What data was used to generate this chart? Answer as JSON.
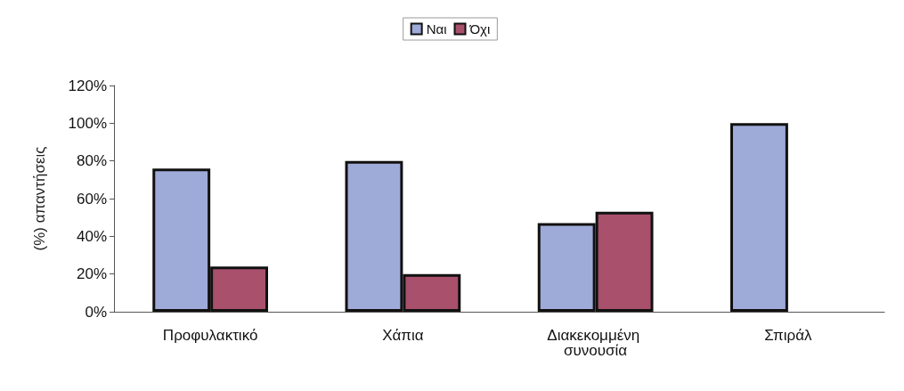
{
  "chart_data": {
    "type": "bar",
    "ylabel": "(%) απαντήσεις",
    "categories": [
      "Προφυλακτικό",
      "Χάπια",
      "Διακεκομμένη συνουσία",
      "Σπιράλ"
    ],
    "series": [
      {
        "name": "Ναι",
        "color": "#9eaad8",
        "values": [
          76,
          80,
          47,
          100
        ]
      },
      {
        "name": "Όχι",
        "color": "#a8506c",
        "values": [
          24,
          20,
          53,
          0
        ]
      }
    ],
    "ylim": [
      0,
      120
    ],
    "yticks": [
      {
        "value": 0,
        "label": "0%"
      },
      {
        "value": 20,
        "label": "20%"
      },
      {
        "value": 40,
        "label": "40%"
      },
      {
        "value": 60,
        "label": "60%"
      },
      {
        "value": 80,
        "label": "80%"
      },
      {
        "value": 100,
        "label": "100%"
      },
      {
        "value": 120,
        "label": "120%"
      }
    ],
    "grid": false,
    "legend": "top"
  }
}
